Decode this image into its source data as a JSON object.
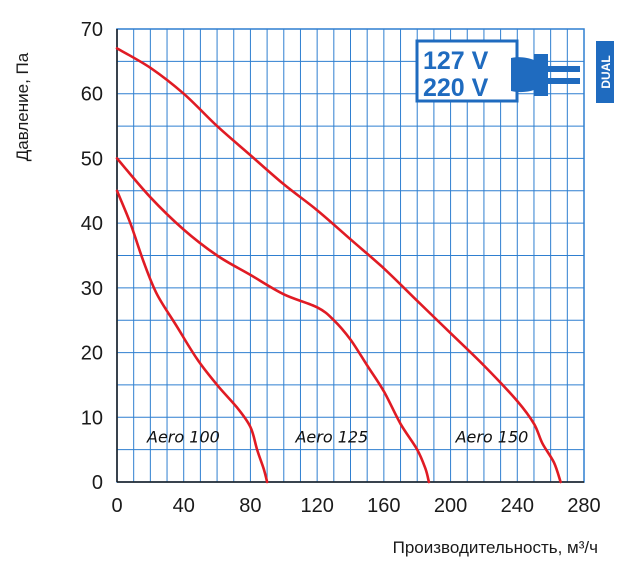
{
  "chart_data": {
    "type": "line",
    "xlabel": "Производительность, м³/ч",
    "ylabel": "Давление, Па",
    "xlim": [
      0,
      280
    ],
    "ylim": [
      0,
      70
    ],
    "x_ticks": [
      "0",
      "40",
      "80",
      "120",
      "160",
      "200",
      "240",
      "280"
    ],
    "y_ticks": [
      "0",
      "10",
      "20",
      "30",
      "40",
      "50",
      "60",
      "70"
    ],
    "grid": true,
    "line_color": "#e01b24",
    "grid_color": "#2f7fd0",
    "series": [
      {
        "name": "Aero 100",
        "points": [
          [
            0,
            45
          ],
          [
            8,
            40
          ],
          [
            16,
            34
          ],
          [
            24,
            29
          ],
          [
            36,
            24
          ],
          [
            48,
            19
          ],
          [
            60,
            15
          ],
          [
            72,
            11.5
          ],
          [
            80,
            8.5
          ],
          [
            84,
            5
          ],
          [
            88,
            2
          ],
          [
            90,
            0
          ]
        ]
      },
      {
        "name": "Aero 125",
        "points": [
          [
            0,
            50
          ],
          [
            20,
            44
          ],
          [
            40,
            39
          ],
          [
            60,
            35
          ],
          [
            80,
            32
          ],
          [
            100,
            29
          ],
          [
            120,
            27
          ],
          [
            130,
            25
          ],
          [
            140,
            22
          ],
          [
            150,
            18
          ],
          [
            160,
            14
          ],
          [
            170,
            9
          ],
          [
            180,
            5
          ],
          [
            185,
            2
          ],
          [
            187,
            0
          ]
        ]
      },
      {
        "name": "Aero 150",
        "points": [
          [
            0,
            67
          ],
          [
            20,
            64
          ],
          [
            40,
            60
          ],
          [
            60,
            55
          ],
          [
            80,
            50.5
          ],
          [
            100,
            46
          ],
          [
            120,
            42
          ],
          [
            140,
            37.5
          ],
          [
            160,
            33
          ],
          [
            180,
            28
          ],
          [
            200,
            23
          ],
          [
            220,
            18
          ],
          [
            240,
            12.5
          ],
          [
            250,
            9
          ],
          [
            255,
            6
          ],
          [
            262,
            3
          ],
          [
            266,
            0
          ]
        ]
      }
    ],
    "series_label_positions": [
      [
        18,
        7
      ],
      [
        107,
        7
      ],
      [
        203,
        7
      ]
    ]
  },
  "badge": {
    "line1": "127 V",
    "line2": "220 V",
    "side": "DUAL",
    "color": "#1f6bbf"
  }
}
